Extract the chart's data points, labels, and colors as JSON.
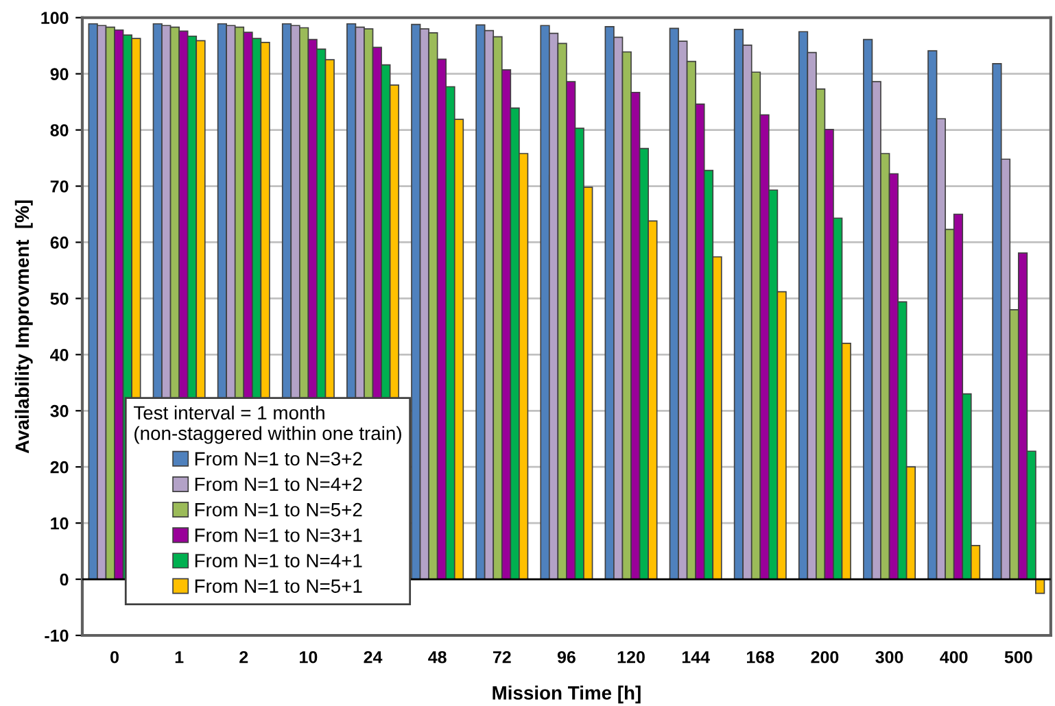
{
  "chart_data": {
    "type": "bar",
    "xlabel": "Mission Time [h]",
    "ylabel": "Availability Improvment  [%]",
    "legend_title": "Test interval = 1 month\n(non-staggered within one train)",
    "categories": [
      "0",
      "1",
      "2",
      "10",
      "24",
      "48",
      "72",
      "96",
      "120",
      "144",
      "168",
      "200",
      "300",
      "400",
      "500"
    ],
    "series": [
      {
        "name": "From N=1 to N=3+2",
        "color": "#4f81bd",
        "values": [
          98.9,
          98.9,
          98.9,
          98.9,
          98.9,
          98.8,
          98.7,
          98.6,
          98.4,
          98.1,
          97.9,
          97.5,
          96.1,
          94.1,
          91.8
        ]
      },
      {
        "name": "From N=1 to N=4+2",
        "color": "#b3a2c7",
        "values": [
          98.6,
          98.6,
          98.6,
          98.6,
          98.3,
          98.0,
          97.7,
          97.2,
          96.5,
          95.8,
          95.1,
          93.8,
          88.6,
          82.0,
          74.8
        ]
      },
      {
        "name": "From N=1 to N=5+2",
        "color": "#9bbb59",
        "values": [
          98.3,
          98.3,
          98.3,
          98.2,
          98.0,
          97.3,
          96.6,
          95.4,
          93.9,
          92.2,
          90.3,
          87.3,
          75.8,
          62.3,
          48.0
        ]
      },
      {
        "name": "From N=1 to N=3+1",
        "color": "#990099",
        "values": [
          97.8,
          97.6,
          97.4,
          96.1,
          94.7,
          92.6,
          90.7,
          88.6,
          86.7,
          84.6,
          82.7,
          80.1,
          72.2,
          65.0,
          58.1
        ]
      },
      {
        "name": "From N=1 to N=4+1",
        "color": "#00b050",
        "values": [
          96.9,
          96.7,
          96.3,
          94.4,
          91.6,
          87.7,
          83.9,
          80.3,
          76.7,
          72.8,
          69.3,
          64.3,
          49.4,
          33.0,
          22.8
        ]
      },
      {
        "name": "From N=1 to N=5+1",
        "color": "#ffc000",
        "values": [
          96.3,
          95.9,
          95.6,
          92.5,
          88.0,
          81.9,
          75.8,
          69.8,
          63.8,
          57.4,
          51.2,
          42.0,
          20.0,
          6.0,
          -2.5
        ]
      }
    ],
    "ylim": [
      -10,
      100
    ],
    "yticks": [
      -10,
      0,
      10,
      20,
      30,
      40,
      50,
      60,
      70,
      80,
      90,
      100
    ],
    "grid": "y",
    "legend": "lower left"
  }
}
